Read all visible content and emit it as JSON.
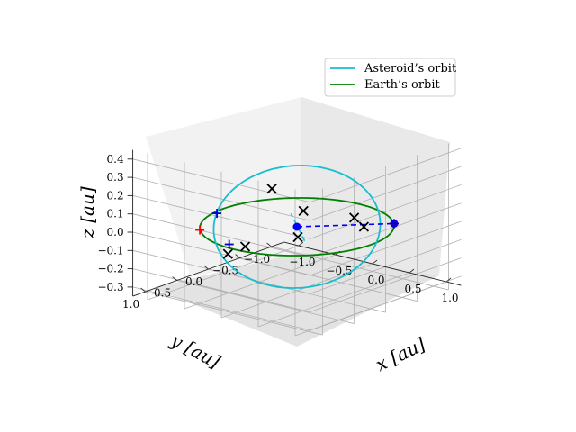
{
  "chart_data": {
    "type": "line",
    "projection": "3d",
    "xlabel": "x [au]",
    "ylabel": "y [au]",
    "zlabel": "z [au]",
    "xlim": [
      -1.2,
      1.2
    ],
    "ylim": [
      -1.2,
      1.2
    ],
    "zlim": [
      -0.35,
      0.45
    ],
    "x_ticks": [
      "−1.0",
      "−0.5",
      "0.0",
      "0.5",
      "1.0"
    ],
    "y_ticks": [
      "1.0",
      "0.5",
      "0.0",
      "−0.5",
      "−1.0"
    ],
    "z_ticks": [
      "0.4",
      "0.3",
      "0.2",
      "0.1",
      "0.0",
      "−0.1",
      "−0.2",
      "−0.3"
    ],
    "grid": true,
    "legend_position": "top-right",
    "series": [
      {
        "name": "Asteroid’s orbit",
        "color": "#17becf",
        "kind": "ellipse",
        "semi_major_au": 1.05,
        "semi_minor_au": 0.74,
        "inclination_deg": 24,
        "node_angle_deg": 45
      },
      {
        "name": "Earth’s orbit",
        "color": "#008000",
        "kind": "circle",
        "radius_au": 1.0
      }
    ],
    "markers": [
      {
        "label": "Sun",
        "x": 0.0,
        "y": 0.0,
        "z": 0.0,
        "color": "#0000ff",
        "shape": "circle"
      },
      {
        "label": "Earth",
        "x": 0.71,
        "y": -0.71,
        "z": 0.0,
        "color": "#0000ff",
        "shape": "circle"
      },
      {
        "label": "node",
        "x": 0.71,
        "y": -0.71,
        "z": 0.0,
        "color": "#ff0000",
        "shape": "plus"
      },
      {
        "label": "node",
        "x": -0.71,
        "y": 0.71,
        "z": 0.0,
        "color": "#ff0000",
        "shape": "plus"
      },
      {
        "label": "",
        "x": -0.15,
        "y": 0.9,
        "z": 0.0,
        "color": "#0000cc",
        "shape": "plus"
      },
      {
        "label": "",
        "x": -0.7,
        "y": 0.45,
        "z": 0.06,
        "color": "#0000cc",
        "shape": "plus"
      },
      {
        "label": "",
        "x": 0.71,
        "y": -0.71,
        "z": 0.0,
        "color": "#0000cc",
        "shape": "plus"
      }
    ],
    "cross_markers": [
      {
        "x": 0.3,
        "y": 0.75,
        "z": 0.33
      },
      {
        "x": 0.95,
        "y": 0.05,
        "z": 0.1
      },
      {
        "x": 0.05,
        "y": -0.85,
        "z": -0.05
      },
      {
        "x": -0.5,
        "y": -0.6,
        "z": -0.18
      },
      {
        "x": -0.85,
        "y": 0.1,
        "z": -0.22
      },
      {
        "x": -1.0,
        "y": -0.35,
        "z": -0.25
      },
      {
        "x": 0.6,
        "y": 0.6,
        "z": 0.22
      }
    ]
  }
}
